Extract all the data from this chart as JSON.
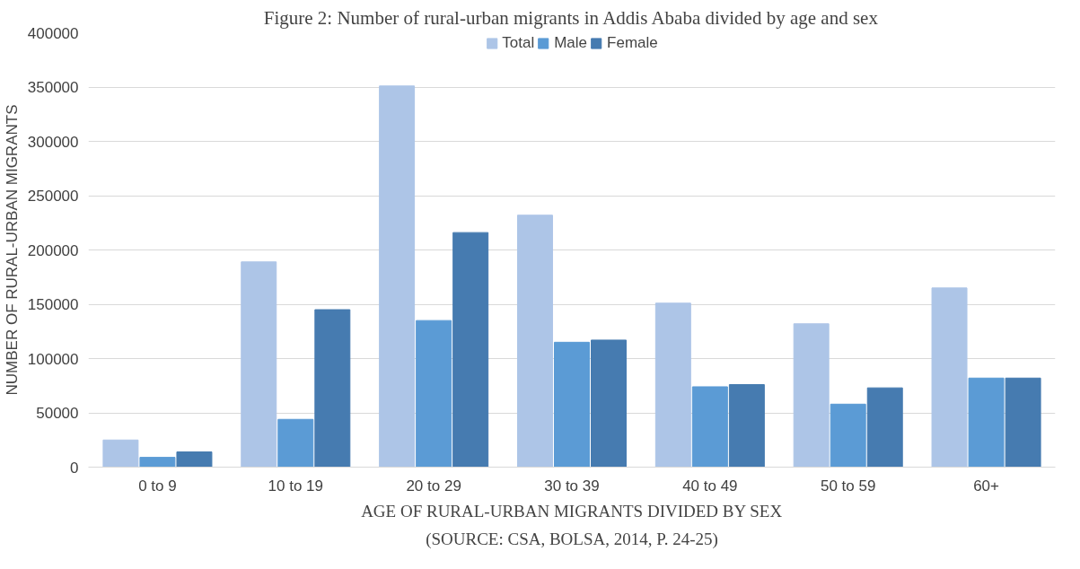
{
  "chart_data": {
    "type": "bar",
    "title": "Figure 2: Number of rural-urban migrants in Addis Ababa divided by age and sex",
    "xlabel": "AGE OF RURAL-URBAN MIGRANTS DIVIDED BY SEX",
    "ylabel": "NUMBER OF RURAL-URBAN MIGRANTS",
    "annotations": [
      "(SOURCE: CSA, BOLSA, 2014, P. 24-25)"
    ],
    "categories": [
      "0 to 9",
      "10 to 19",
      "20 to 29",
      "30 to 39",
      "40 to 49",
      "50 to 59",
      "60+"
    ],
    "series": [
      {
        "name": "Total",
        "color": "#adc5e7",
        "values": [
          25000,
          189000,
          351000,
          232000,
          151000,
          132000,
          165000
        ]
      },
      {
        "name": "Male",
        "color": "#5b9bd5",
        "values": [
          9000,
          44000,
          135000,
          115000,
          74000,
          58000,
          82000
        ]
      },
      {
        "name": "Female",
        "color": "#467bb0",
        "values": [
          14000,
          145000,
          216000,
          117000,
          76000,
          73000,
          82000
        ]
      }
    ],
    "ylim": [
      0,
      400000
    ],
    "yticks": [
      0,
      50000,
      100000,
      150000,
      200000,
      250000,
      300000,
      350000,
      400000
    ],
    "grid": "y",
    "legend": "top"
  }
}
